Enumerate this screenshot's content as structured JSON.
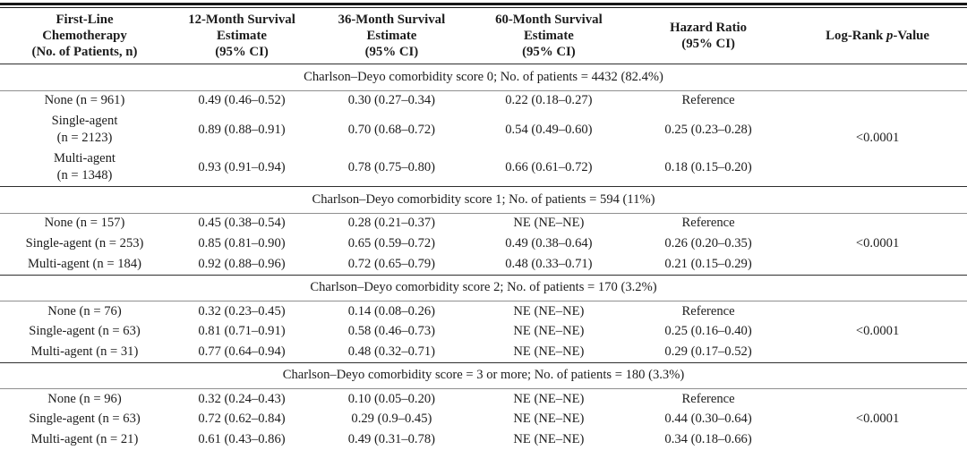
{
  "table": {
    "columns": [
      {
        "text": "First-Line\nChemotherapy\n(No. of Patients, n)"
      },
      {
        "text": "12-Month Survival\nEstimate\n(95% CI)"
      },
      {
        "text": "36-Month Survival\nEstimate\n(95% CI)"
      },
      {
        "text": "60-Month Survival\nEstimate\n(95% CI)"
      },
      {
        "text": "Hazard Ratio\n(95% CI)"
      },
      {
        "pre": "Log-Rank ",
        "italic": "p",
        "post": "-Value"
      }
    ],
    "sections": [
      {
        "header": "Charlson–Deyo comorbidity score 0; No. of patients = 4432 (82.4%)",
        "p_value": "<0.0001",
        "rows": [
          {
            "label": "None (n = 961)",
            "m12": "0.49 (0.46–0.52)",
            "m36": "0.30 (0.27–0.34)",
            "m60": "0.22 (0.18–0.27)",
            "hr": "Reference"
          },
          {
            "label": "Single-agent\n(n = 2123)",
            "m12": "0.89 (0.88–0.91)",
            "m36": "0.70 (0.68–0.72)",
            "m60": "0.54 (0.49–0.60)",
            "hr": "0.25 (0.23–0.28)"
          },
          {
            "label": "Multi-agent\n(n = 1348)",
            "m12": "0.93 (0.91–0.94)",
            "m36": "0.78 (0.75–0.80)",
            "m60": "0.66 (0.61–0.72)",
            "hr": "0.18 (0.15–0.20)"
          }
        ]
      },
      {
        "header": "Charlson–Deyo comorbidity score 1; No. of patients = 594 (11%)",
        "p_value": "<0.0001",
        "rows": [
          {
            "label": "None (n = 157)",
            "m12": "0.45 (0.38–0.54)",
            "m36": "0.28 (0.21–0.37)",
            "m60": "NE (NE–NE)",
            "hr": "Reference"
          },
          {
            "label": "Single-agent (n = 253)",
            "m12": "0.85 (0.81–0.90)",
            "m36": "0.65 (0.59–0.72)",
            "m60": "0.49 (0.38–0.64)",
            "hr": "0.26 (0.20–0.35)"
          },
          {
            "label": "Multi-agent (n = 184)",
            "m12": "0.92 (0.88–0.96)",
            "m36": "0.72 (0.65–0.79)",
            "m60": "0.48 (0.33–0.71)",
            "hr": "0.21 (0.15–0.29)"
          }
        ]
      },
      {
        "header": "Charlson–Deyo comorbidity score 2; No. of patients = 170 (3.2%)",
        "p_value": "<0.0001",
        "rows": [
          {
            "label": "None (n = 76)",
            "m12": "0.32 (0.23–0.45)",
            "m36": "0.14 (0.08–0.26)",
            "m60": "NE (NE–NE)",
            "hr": "Reference"
          },
          {
            "label": "Single-agent (n = 63)",
            "m12": "0.81 (0.71–0.91)",
            "m36": "0.58 (0.46–0.73)",
            "m60": "NE (NE–NE)",
            "hr": "0.25 (0.16–0.40)"
          },
          {
            "label": "Multi-agent (n = 31)",
            "m12": "0.77 (0.64–0.94)",
            "m36": "0.48 (0.32–0.71)",
            "m60": "NE (NE–NE)",
            "hr": "0.29 (0.17–0.52)"
          }
        ]
      },
      {
        "header": "Charlson–Deyo comorbidity score = 3 or more; No. of patients = 180 (3.3%)",
        "p_value": "<0.0001",
        "rows": [
          {
            "label": "None (n = 96)",
            "m12": "0.32 (0.24–0.43)",
            "m36": "0.10 (0.05–0.20)",
            "m60": "NE (NE–NE)",
            "hr": "Reference"
          },
          {
            "label": "Single-agent (n = 63)",
            "m12": "0.72 (0.62–0.84)",
            "m36": "0.29 (0.9–0.45)",
            "m60": "NE (NE–NE)",
            "hr": "0.44 (0.30–0.64)"
          },
          {
            "label": "Multi-agent (n = 21)",
            "m12": "0.61 (0.43–0.86)",
            "m36": "0.49 (0.31–0.78)",
            "m60": "NE (NE–NE)",
            "hr": "0.34 (0.18–0.66)"
          }
        ]
      }
    ]
  }
}
